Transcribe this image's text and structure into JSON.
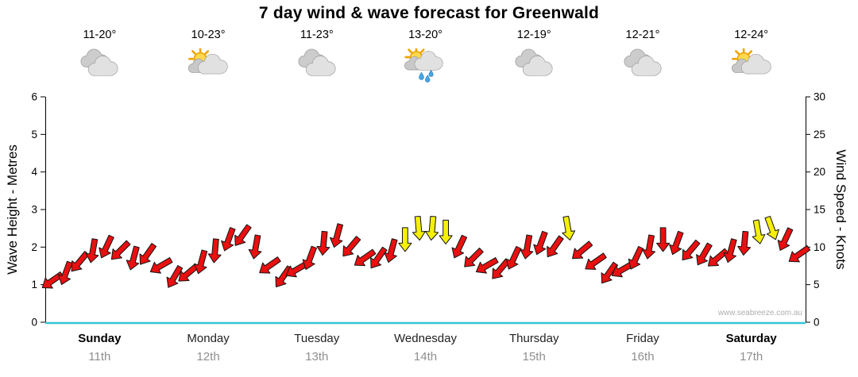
{
  "title": "7 day wind & wave forecast for Greenwald",
  "watermark": "www.seabreeze.com.au",
  "axes": {
    "left_label": "Wave Height - Metres",
    "right_label": "Wind Speed - Knots",
    "left_ticks": [
      0,
      1,
      2,
      3,
      4,
      5,
      6
    ],
    "right_ticks": [
      0,
      5,
      10,
      15,
      20,
      25,
      30
    ]
  },
  "days": [
    {
      "name": "Sunday",
      "date": "11th",
      "temp": "11-20°",
      "icon": "cloudy",
      "bold": true
    },
    {
      "name": "Monday",
      "date": "12th",
      "temp": "10-23°",
      "icon": "sun-cloud",
      "bold": false
    },
    {
      "name": "Tuesday",
      "date": "13th",
      "temp": "11-23°",
      "icon": "cloudy",
      "bold": false
    },
    {
      "name": "Wednesday",
      "date": "14th",
      "temp": "13-20°",
      "icon": "sun-cloud-rain",
      "bold": false
    },
    {
      "name": "Thursday",
      "date": "15th",
      "temp": "12-19°",
      "icon": "cloudy",
      "bold": false
    },
    {
      "name": "Friday",
      "date": "16th",
      "temp": "12-21°",
      "icon": "cloudy",
      "bold": false
    },
    {
      "name": "Saturday",
      "date": "17th",
      "temp": "12-24°",
      "icon": "sun-cloud",
      "bold": true
    }
  ],
  "chart_data": {
    "type": "wind-arrow-series",
    "title": "7 day wind & wave forecast for Greenwald",
    "x_categories": [
      "Sunday 11th",
      "Monday 12th",
      "Tuesday 13th",
      "Wednesday 14th",
      "Thursday 15th",
      "Friday 16th",
      "Saturday 17th"
    ],
    "wave_axis": {
      "label": "Wave Height - Metres",
      "min": 0,
      "max": 6
    },
    "wind_axis": {
      "label": "Wind Speed - Knots",
      "min": 0,
      "max": 30
    },
    "points_per_day": 8,
    "wind_knots": [
      5.5,
      6.5,
      8,
      9.5,
      10,
      9.5,
      8.5,
      9,
      7.5,
      6,
      6.5,
      8,
      9.5,
      11,
      11.5,
      10,
      7.5,
      6,
      7,
      8.5,
      10.5,
      11.5,
      10,
      8.5,
      8.5,
      9.5,
      11,
      12.5,
      12.5,
      12,
      10,
      8.5,
      7.5,
      7,
      8.5,
      10,
      10.5,
      10,
      12.5,
      9.5,
      8,
      6.5,
      7,
      8.5,
      10,
      11,
      10.5,
      9.5,
      9,
      8.5,
      9.5,
      10.5,
      12,
      12.5,
      11,
      9
    ],
    "wind_dir_deg": [
      235,
      200,
      220,
      190,
      205,
      225,
      195,
      215,
      240,
      210,
      230,
      195,
      185,
      200,
      215,
      190,
      235,
      215,
      240,
      200,
      185,
      195,
      220,
      235,
      215,
      195,
      180,
      175,
      185,
      180,
      205,
      225,
      240,
      220,
      205,
      190,
      200,
      215,
      170,
      230,
      235,
      215,
      240,
      205,
      190,
      180,
      200,
      220,
      210,
      230,
      195,
      185,
      170,
      160,
      205,
      235
    ],
    "yellow_point_indices": [
      26,
      27,
      28,
      29,
      38,
      52,
      53
    ],
    "colors": {
      "arrow": "#e81010",
      "arrow_strong": "#f5ef0a",
      "arrow_outline": "#141414",
      "bottom_axis": "#35c6d4",
      "axis": "#000000"
    }
  }
}
